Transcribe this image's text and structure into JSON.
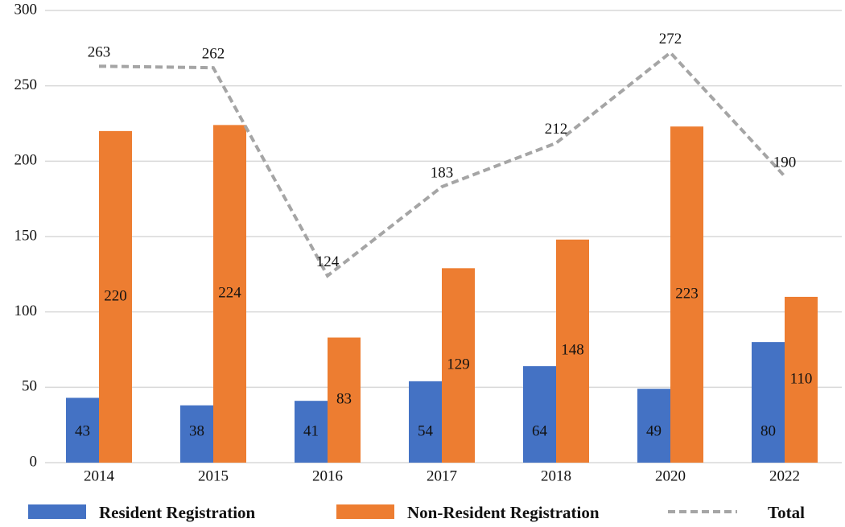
{
  "chart_data": {
    "type": "bar",
    "categories": [
      "2014",
      "2015",
      "2016",
      "2017",
      "2018",
      "2020",
      "2022"
    ],
    "series": [
      {
        "name": "Resident Registration",
        "color": "#4472c4",
        "type": "bar",
        "values": [
          43,
          38,
          41,
          54,
          64,
          49,
          80
        ]
      },
      {
        "name": "Non-Resident Registration",
        "color": "#ed7d31",
        "type": "bar",
        "values": [
          220,
          224,
          83,
          129,
          148,
          223,
          110
        ]
      },
      {
        "name": "Total",
        "color": "#a5a5a5",
        "type": "line",
        "dashed": true,
        "values": [
          263,
          262,
          124,
          183,
          212,
          272,
          190
        ]
      }
    ],
    "ylim": [
      0,
      300
    ],
    "yticks": [
      0,
      50,
      100,
      150,
      200,
      250,
      300
    ],
    "grid": true,
    "legend": "bottom"
  }
}
